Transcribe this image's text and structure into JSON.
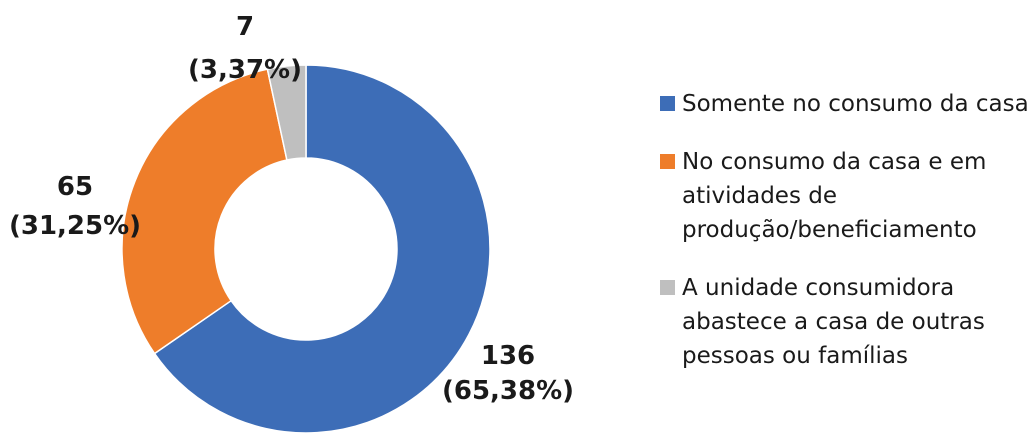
{
  "chart_data": {
    "type": "pie",
    "style": "donut",
    "categories": [
      "Somente no consumo da casa",
      "No consumo da casa e em atividades de produção/beneficiamento",
      "A unidade consumidora abastece a casa de outras pessoas ou famílias"
    ],
    "values": [
      136,
      65,
      7
    ],
    "percentages": [
      "65,38%",
      "31,25%",
      "3,37%"
    ],
    "value_labels": [
      "136",
      "65",
      "7"
    ],
    "percent_labels": [
      "(65,38%)",
      "(31,25%)",
      "(3,37%)"
    ],
    "colors": [
      "#3D6DB7",
      "#EE7D2A",
      "#BFBFBF"
    ],
    "legend_lines": [
      [
        "Somente no consumo da casa"
      ],
      [
        "No consumo da casa e em",
        "atividades de",
        "produção/beneficiamento"
      ],
      [
        "A unidade consumidora",
        "abastece a casa de outras",
        "pessoas ou famílias"
      ]
    ],
    "legend_position": "right",
    "title": ""
  }
}
